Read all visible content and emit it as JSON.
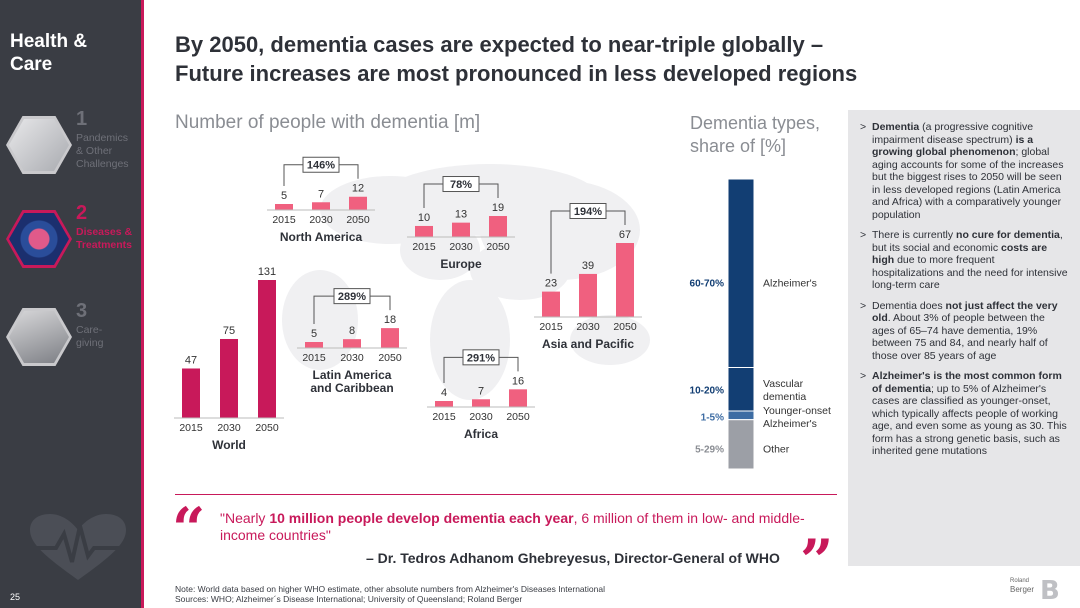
{
  "sidebar": {
    "title": "Health &\nCare",
    "items": [
      {
        "num": "1",
        "label": "Pandemics\n& Other\nChallenges",
        "icon": "people-mask-icon"
      },
      {
        "num": "2",
        "label": "Diseases &\nTreatments",
        "icon": "virus-icon",
        "active": true
      },
      {
        "num": "3",
        "label": "Care-\ngiving",
        "icon": "caregiver-icon"
      }
    ],
    "page_number": "25"
  },
  "headline": "By 2050, dementia cases are expected to near-triple globally –\nFuture increases are most pronounced in less developed regions",
  "section_title": "Number of people with dementia [m]",
  "types_title": "Dementia types,\nshare of [%]",
  "colors": {
    "accent": "#c8195a",
    "bar_light": "#f0607f",
    "bar_dark": "#c8195a",
    "navy": "#123e73",
    "steel": "#3d6ca3",
    "grey": "#9c9fa6"
  },
  "chart_data": [
    {
      "type": "bar",
      "title": "Number of people with dementia [m]",
      "groups": [
        {
          "name": "World",
          "categories": [
            "2015",
            "2030",
            "2050"
          ],
          "values": [
            47,
            75,
            131
          ],
          "growth": null
        },
        {
          "name": "North America",
          "categories": [
            "2015",
            "2030",
            "2050"
          ],
          "values": [
            5,
            7,
            12
          ],
          "growth": "146%"
        },
        {
          "name": "Europe",
          "categories": [
            "2015",
            "2030",
            "2050"
          ],
          "values": [
            10,
            13,
            19
          ],
          "growth": "78%"
        },
        {
          "name": "Latin America and Caribbean",
          "categories": [
            "2015",
            "2030",
            "2050"
          ],
          "values": [
            5,
            8,
            18
          ],
          "growth": "289%"
        },
        {
          "name": "Africa",
          "categories": [
            "2015",
            "2030",
            "2050"
          ],
          "values": [
            4,
            7,
            16
          ],
          "growth": "291%"
        },
        {
          "name": "Asia and Pacific",
          "categories": [
            "2015",
            "2030",
            "2050"
          ],
          "values": [
            23,
            39,
            67
          ],
          "growth": "194%"
        }
      ]
    },
    {
      "type": "bar",
      "title": "Dementia types, share of [%]",
      "stacked": true,
      "segments": [
        {
          "label": "Alzheimer's",
          "range": "60-70%",
          "share": 65
        },
        {
          "label": "Vascular dementia",
          "range": "10-20%",
          "share": 15
        },
        {
          "label": "Younger-onset Alzheimer's",
          "range": "1-5%",
          "share": 3
        },
        {
          "label": "Other",
          "range": "5-29%",
          "share": 17
        }
      ]
    }
  ],
  "bullets": [
    {
      "parts": [
        [
          "b",
          "Dementia"
        ],
        [
          "t",
          " (a progressive cognitive impairment disease spectrum) "
        ],
        [
          "b",
          "is a growing global phenomenon"
        ],
        [
          "t",
          "; global aging accounts for some of the increases but the biggest rises to 2050 will be seen in less developed regions (Latin America and Africa) with a comparatively younger population"
        ]
      ]
    },
    {
      "parts": [
        [
          "t",
          "There is currently "
        ],
        [
          "b",
          "no cure for dementia"
        ],
        [
          "t",
          ", but its social and economic "
        ],
        [
          "b",
          "costs are high"
        ],
        [
          "t",
          " due to more frequent hospitalizations and the need for intensive long-term care"
        ]
      ]
    },
    {
      "parts": [
        [
          "t",
          "Dementia does "
        ],
        [
          "b",
          "not just affect the very old"
        ],
        [
          "t",
          ". About 3% of people between the ages of 65–74 have dementia, 19% between 75 and 84, and nearly half of those over 85 years of age"
        ]
      ]
    },
    {
      "parts": [
        [
          "b",
          "Alzheimer's is the most common form of dementia"
        ],
        [
          "t",
          "; up to 5% of Alzheimer's cases are classified as younger-onset, which typically affects people of working age, and even some as young as 30. This form has a strong genetic basis, such as inherited gene mutations"
        ]
      ]
    }
  ],
  "quote": {
    "open_mark": "“",
    "close_mark": "”",
    "before": "\"Nearly ",
    "bold": "10 million people develop dementia each year",
    "after": ", 6 million of them in low- and middle-income countries\"",
    "author": "– Dr. Tedros Adhanom Ghebreyesus, Director-General of WHO"
  },
  "footnote": {
    "line1": "Note: World data based on higher WHO estimate, other absolute numbers from Alzheimer's Diseases International",
    "line2": "Sources: WHO; Alzheimer´s Disease International; University of Queensland; Roland Berger"
  },
  "logo": {
    "small": "Roland",
    "name": "Berger",
    "mark": "B"
  }
}
